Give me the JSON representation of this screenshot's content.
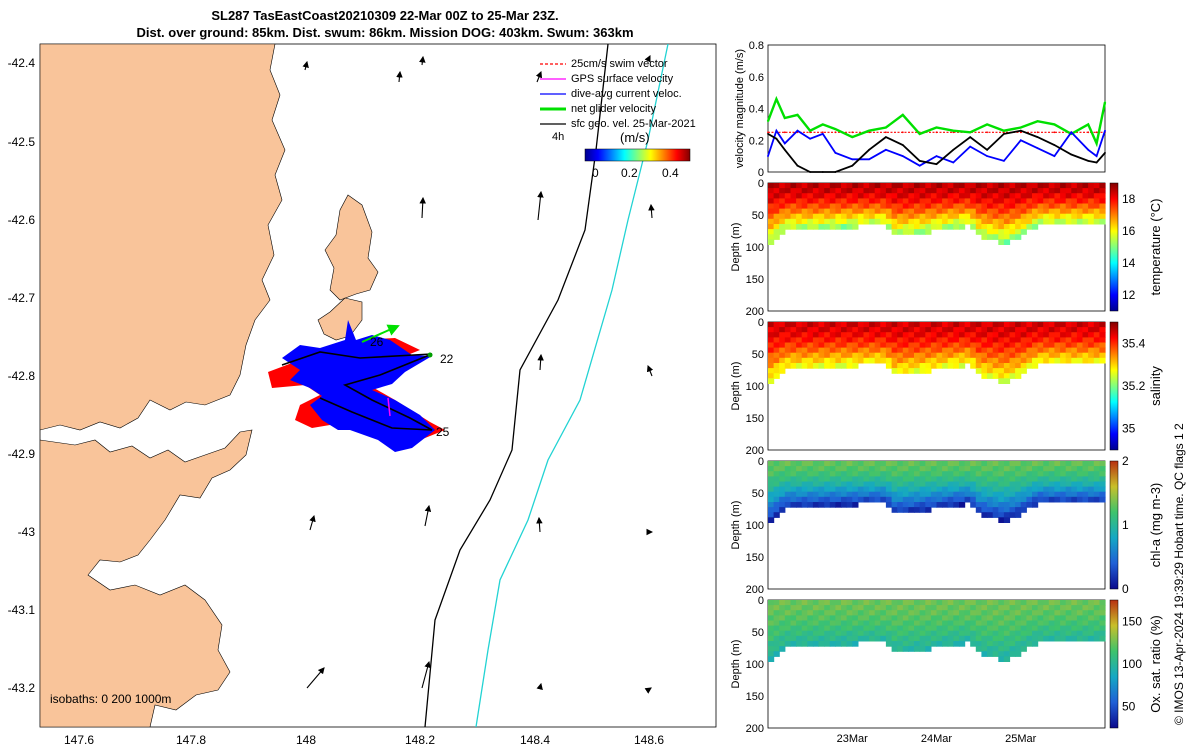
{
  "title": {
    "line1": "SL287 TasEastCoast20210309 22-Mar 00Z to 25-Mar 23Z.",
    "line2": "Dist. over ground: 85km. Dist. swum: 86km. Mission DOG: 403km. Swum: 363km"
  },
  "footer": {
    "credit": "© IMOS 13-Apr-2024 19:39:29 Hobart time. QC flags 1  2"
  },
  "colors": {
    "land": "#f9c49a",
    "swim_vector": "#ff0000",
    "gps_surface": "#ff00ff",
    "dive_avg": "#0000ff",
    "net_glider": "#00e000",
    "sfc_geo": "#000000",
    "isobath_200": "#000000",
    "isobath_1000": "#22d3d3"
  },
  "map": {
    "legend": [
      {
        "label": "25cm/s swim vector",
        "color": "#ff0000"
      },
      {
        "label": "GPS surface velocity",
        "color": "#ff00ff"
      },
      {
        "label": "dive-avg current veloc.",
        "color": "#0000ff"
      },
      {
        "label": "net glider velocity",
        "color": "#00e000"
      },
      {
        "label": "sfc geo. vel. 25-Mar-2021",
        "color": "#000000"
      }
    ],
    "legend_time_label": "4h",
    "colorbar_label": "(m/s)",
    "colorbar_ticks": [
      "0",
      "0.2",
      "0.4"
    ],
    "day_labels": [
      "26",
      "22",
      "25"
    ],
    "isobath_text": "isobaths: 0   200  1000m",
    "x_ticks": [
      "147.6",
      "147.8",
      "148",
      "148.2",
      "148.4",
      "148.6"
    ],
    "y_ticks": [
      "-42.4",
      "-42.5",
      "-42.6",
      "-42.7",
      "-42.8",
      "-42.9",
      "-43",
      "-43.1",
      "-43.2"
    ]
  },
  "chart_data": [
    {
      "type": "line",
      "title": "",
      "ylabel": "velocity magnitude (m/s)",
      "ylim": [
        0,
        0.8
      ],
      "y_ticks": [
        "0",
        "0.2",
        "0.4",
        "0.6",
        "0.8"
      ],
      "xlim": [
        22.0,
        26.0
      ],
      "x": [
        22.0,
        22.1,
        22.2,
        22.35,
        22.5,
        22.65,
        22.8,
        23.0,
        23.2,
        23.4,
        23.6,
        23.8,
        24.0,
        24.2,
        24.4,
        24.6,
        24.8,
        25.0,
        25.2,
        25.4,
        25.6,
        25.8,
        25.9,
        26.0
      ],
      "series": [
        {
          "name": "25cm/s swim vector",
          "color": "#ff0000",
          "values": [
            0.25,
            0.25,
            0.25,
            0.25,
            0.25,
            0.25,
            0.25,
            0.25,
            0.25,
            0.25,
            0.25,
            0.25,
            0.25,
            0.25,
            0.25,
            0.25,
            0.25,
            0.25,
            0.25,
            0.25,
            0.25,
            0.25,
            0.25,
            0.25
          ]
        },
        {
          "name": "net glider velocity",
          "color": "#00e000",
          "values": [
            0.32,
            0.46,
            0.34,
            0.36,
            0.26,
            0.3,
            0.27,
            0.22,
            0.26,
            0.28,
            0.36,
            0.24,
            0.28,
            0.26,
            0.25,
            0.3,
            0.26,
            0.28,
            0.32,
            0.3,
            0.24,
            0.3,
            0.18,
            0.44
          ]
        },
        {
          "name": "dive-avg current veloc.",
          "color": "#0000ff",
          "values": [
            0.1,
            0.26,
            0.18,
            0.26,
            0.21,
            0.24,
            0.12,
            0.08,
            0.08,
            0.14,
            0.1,
            0.04,
            0.1,
            0.06,
            0.16,
            0.1,
            0.07,
            0.2,
            0.15,
            0.1,
            0.25,
            0.14,
            0.1,
            0.26
          ]
        },
        {
          "name": "sfc geo. vel.",
          "color": "#000000",
          "values": [
            0.24,
            0.21,
            0.14,
            0.04,
            0.0,
            0.0,
            0.0,
            0.04,
            0.14,
            0.22,
            0.17,
            0.07,
            0.05,
            0.14,
            0.22,
            0.14,
            0.24,
            0.26,
            0.22,
            0.17,
            0.11,
            0.07,
            0.06,
            0.12
          ]
        }
      ]
    },
    {
      "type": "heatmap",
      "ylabel": "Depth (m)",
      "colorbar_label": "temperature (°C)",
      "colorbar_ticks": [
        "12",
        "14",
        "16",
        "18"
      ],
      "ylim": [
        200,
        0
      ],
      "y_ticks": [
        "0",
        "50",
        "100",
        "150",
        "200"
      ],
      "xlim": [
        22.0,
        26.0
      ],
      "bottom_profile_x": [
        22.0,
        22.2,
        23.4,
        23.5,
        23.8,
        24.4,
        24.5,
        24.8,
        25.0,
        25.2,
        25.3,
        25.9,
        26.0
      ],
      "bottom_profile_depth": [
        95,
        70,
        62,
        80,
        75,
        62,
        80,
        90,
        80,
        62,
        62,
        62,
        62
      ],
      "surface_value": 18.5,
      "deep_value": 15.0
    },
    {
      "type": "heatmap",
      "ylabel": "Depth (m)",
      "colorbar_label": "salinity",
      "colorbar_ticks": [
        "35",
        "35.2",
        "35.4"
      ],
      "ylim": [
        200,
        0
      ],
      "y_ticks": [
        "0",
        "50",
        "100",
        "150",
        "200"
      ],
      "xlim": [
        22.0,
        26.0
      ],
      "bottom_profile_x": [
        22.0,
        22.2,
        23.4,
        23.5,
        23.8,
        24.4,
        24.5,
        24.8,
        25.0,
        25.2,
        25.3,
        25.9,
        26.0
      ],
      "bottom_profile_depth": [
        95,
        70,
        62,
        80,
        75,
        62,
        80,
        90,
        80,
        62,
        62,
        62,
        62
      ],
      "surface_value": 35.45,
      "deep_value": 35.25
    },
    {
      "type": "heatmap",
      "ylabel": "Depth (m)",
      "colorbar_label": "chl-a (mg m-3)",
      "colorbar_ticks": [
        "0",
        "1",
        "2"
      ],
      "ylim": [
        200,
        0
      ],
      "y_ticks": [
        "0",
        "50",
        "100",
        "150",
        "200"
      ],
      "xlim": [
        22.0,
        26.0
      ],
      "bottom_profile_x": [
        22.0,
        22.2,
        23.4,
        23.5,
        23.8,
        24.4,
        24.5,
        24.8,
        25.0,
        25.2,
        25.3,
        25.9,
        26.0
      ],
      "bottom_profile_depth": [
        95,
        70,
        62,
        80,
        75,
        62,
        80,
        90,
        80,
        62,
        62,
        62,
        62
      ],
      "surface_value": 1.3,
      "deep_value": 0.1
    },
    {
      "type": "heatmap",
      "ylabel": "Depth (m)",
      "colorbar_label": "Ox. sat. ratio (%)",
      "colorbar_ticks": [
        "50",
        "100",
        "150"
      ],
      "ylim": [
        200,
        0
      ],
      "y_ticks": [
        "0",
        "50",
        "100",
        "150",
        "200"
      ],
      "x_ticks": [
        "23Mar",
        "24Mar",
        "25Mar"
      ],
      "x_tick_values": [
        23,
        24,
        25
      ],
      "xlim": [
        22.0,
        26.0
      ],
      "bottom_profile_x": [
        22.0,
        22.2,
        23.4,
        23.5,
        23.8,
        24.4,
        24.5,
        24.8,
        25.0,
        25.2,
        25.3,
        25.9,
        26.0
      ],
      "bottom_profile_depth": [
        95,
        70,
        62,
        80,
        75,
        62,
        80,
        90,
        80,
        62,
        62,
        62,
        62
      ],
      "surface_value": 125,
      "deep_value": 95
    }
  ]
}
